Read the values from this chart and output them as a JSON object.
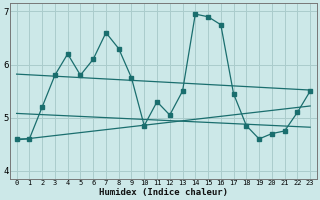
{
  "xlabel": "Humidex (Indice chaleur)",
  "bg_color": "#cce8e8",
  "grid_color": "#aacccc",
  "line_color": "#1a6e6e",
  "x_ticks": [
    0,
    1,
    2,
    3,
    4,
    5,
    6,
    7,
    8,
    9,
    10,
    11,
    12,
    13,
    14,
    15,
    16,
    17,
    18,
    19,
    20,
    21,
    22,
    23
  ],
  "ylim": [
    3.85,
    7.15
  ],
  "xlim": [
    -0.5,
    23.5
  ],
  "series1_x": [
    0,
    1,
    2,
    3,
    4,
    5,
    6,
    7,
    8,
    9,
    10,
    11,
    12,
    13,
    14,
    15,
    16,
    17,
    18,
    19,
    20,
    21,
    22,
    23
  ],
  "series1_y": [
    4.6,
    4.6,
    5.2,
    5.8,
    6.2,
    5.8,
    6.1,
    6.6,
    6.3,
    5.75,
    4.85,
    5.3,
    5.05,
    5.5,
    6.95,
    6.9,
    6.75,
    5.45,
    4.85,
    4.6,
    4.7,
    4.75,
    5.1,
    5.5
  ],
  "trend1_x": [
    0,
    23
  ],
  "trend1_y": [
    5.82,
    5.52
  ],
  "trend2_x": [
    0,
    23
  ],
  "trend2_y": [
    4.58,
    5.22
  ],
  "trend3_x": [
    0,
    23
  ],
  "trend3_y": [
    5.08,
    4.82
  ],
  "ytick_vals": [
    4,
    5,
    6,
    7
  ],
  "ytick_labels": [
    "4",
    "5",
    "6",
    "7"
  ],
  "xtick_fontsize": 5.0,
  "ytick_fontsize": 6.5,
  "xlabel_fontsize": 6.5
}
